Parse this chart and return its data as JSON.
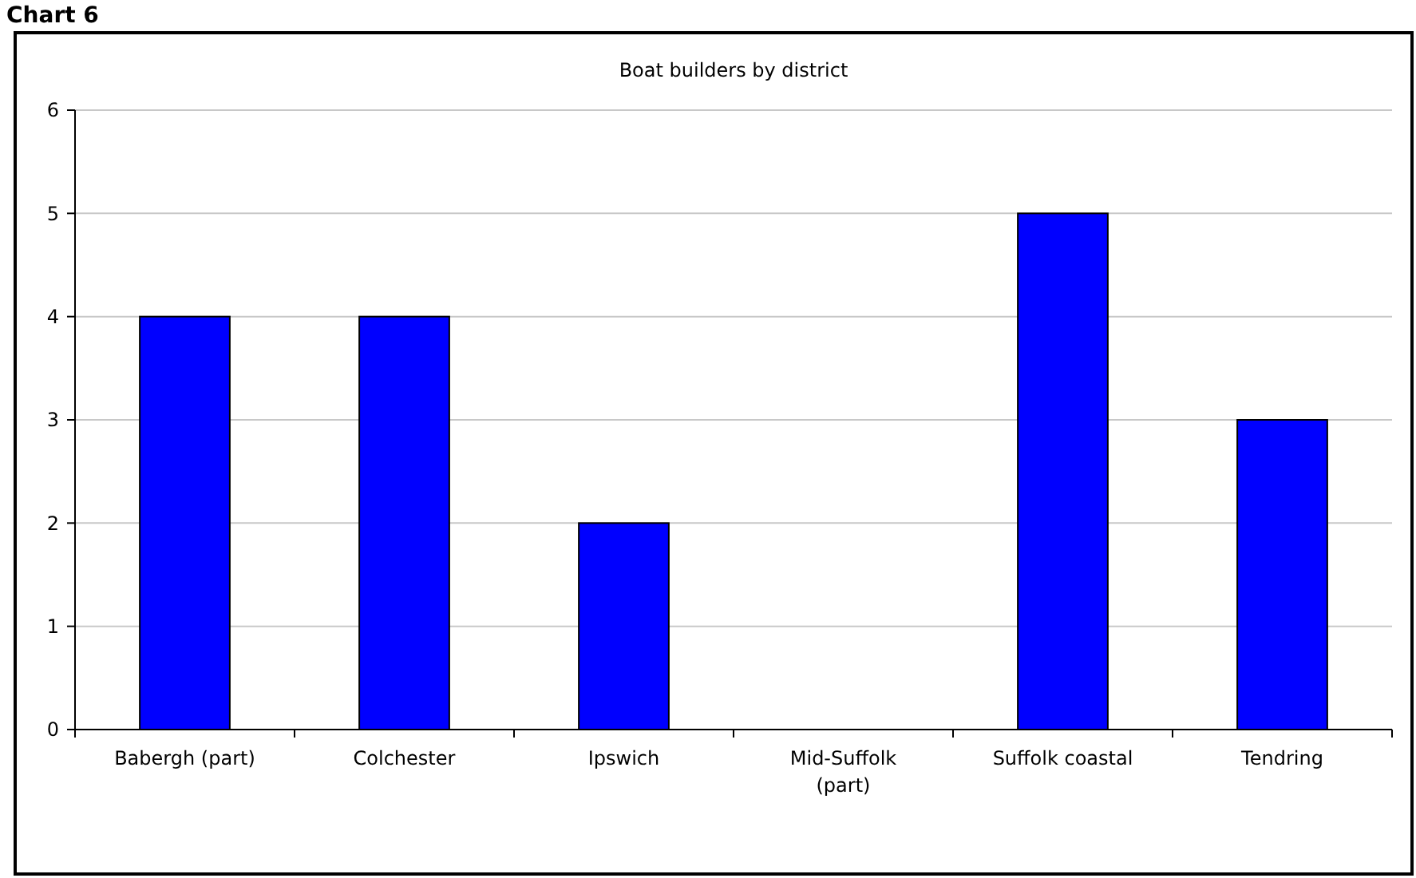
{
  "chart_data": {
    "type": "bar",
    "title": "Boat builders by district",
    "annotations": [
      "Chart 6"
    ],
    "categories": [
      "Babergh (part)",
      "Colchester",
      "Ipswich",
      "Mid-Suffolk (part)",
      "Suffolk coastal",
      "Tendring"
    ],
    "values": [
      4,
      4,
      2,
      0,
      5,
      3
    ],
    "color": "#0000ff",
    "ylim": [
      0,
      6
    ],
    "yticks": [
      0,
      1,
      2,
      3,
      4,
      5,
      6
    ],
    "grid": "y"
  }
}
